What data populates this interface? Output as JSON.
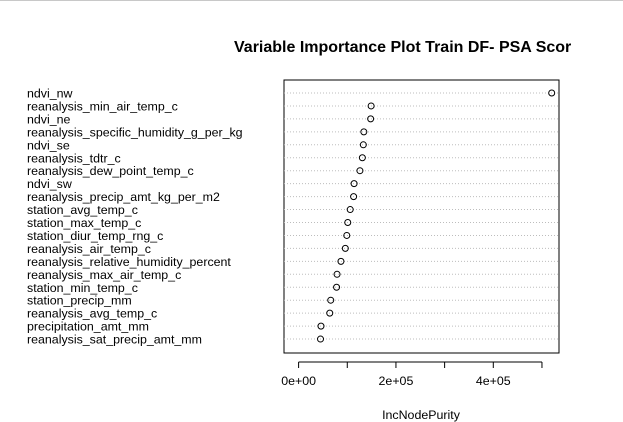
{
  "chart_data": {
    "type": "scatter",
    "title": "Variable Importance Plot Train DF- PSA Scor",
    "xlabel": "IncNodePurity",
    "ylabel": "",
    "xlim": [
      -30000,
      535000
    ],
    "xticks": [
      0,
      100000,
      200000,
      300000,
      400000,
      500000
    ],
    "xtick_labels": [
      "0e+00",
      "",
      "2e+05",
      "",
      "4e+05",
      ""
    ],
    "grid": "dotted horizontal per variable",
    "categories": [
      "ndvi_nw",
      "reanalysis_min_air_temp_c",
      "ndvi_ne",
      "reanalysis_specific_humidity_g_per_kg",
      "ndvi_se",
      "reanalysis_tdtr_c",
      "reanalysis_dew_point_temp_c",
      "ndvi_sw",
      "reanalysis_precip_amt_kg_per_m2",
      "station_avg_temp_c",
      "station_max_temp_c",
      "station_diur_temp_rng_c",
      "reanalysis_air_temp_c",
      "reanalysis_relative_humidity_percent",
      "reanalysis_max_air_temp_c",
      "station_min_temp_c",
      "station_precip_mm",
      "reanalysis_avg_temp_c",
      "precipitation_amt_mm",
      "reanalysis_sat_precip_amt_mm"
    ],
    "values": [
      520000,
      149000,
      148000,
      134000,
      133000,
      131000,
      126000,
      114000,
      113000,
      106000,
      101000,
      99000,
      96000,
      87000,
      79000,
      78000,
      66000,
      64000,
      46000,
      45000
    ]
  }
}
